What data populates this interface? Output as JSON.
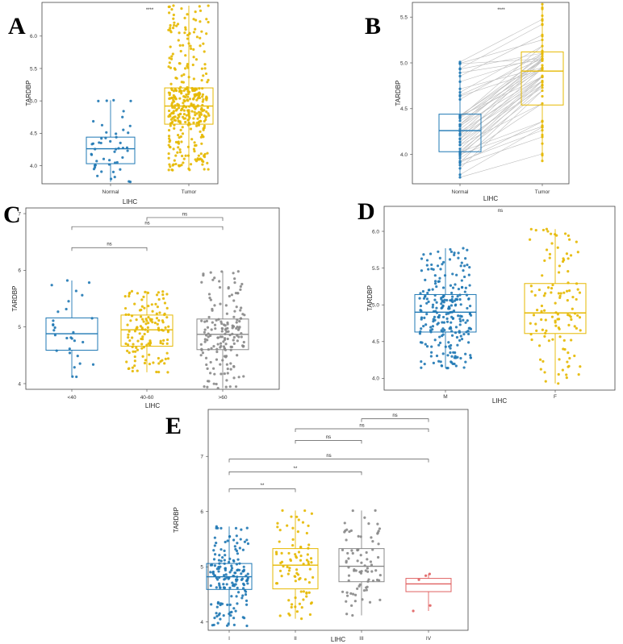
{
  "chart_data": [
    {
      "panel": "A",
      "type": "box",
      "title": "",
      "xlabel": "LIHC",
      "ylabel": "TARDBP",
      "ylim": [
        3.72,
        6.52
      ],
      "yticks": [
        4.0,
        4.5,
        5.0,
        5.5,
        6.0
      ],
      "ytick_labels": [
        "4.0",
        "4.5",
        "5.0",
        "5.5",
        "6.0"
      ],
      "categories": [
        "Normal",
        "Tumor"
      ],
      "colors": [
        "#1f78b4",
        "#e6b800"
      ],
      "n_points": [
        50,
        370
      ],
      "boxes": [
        {
          "min": 3.75,
          "q1": 4.03,
          "median": 4.26,
          "q3": 4.44,
          "max": 5.01
        },
        {
          "min": 3.93,
          "q1": 4.64,
          "median": 4.92,
          "q3": 5.2,
          "max": 6.47
        }
      ],
      "comparisons": [
        {
          "from": 0,
          "to": 1,
          "label": "****"
        }
      ]
    },
    {
      "panel": "B",
      "type": "box",
      "paired": true,
      "xlabel": "LIHC",
      "ylabel": "TARDBP",
      "ylim": [
        3.68,
        5.66
      ],
      "yticks": [
        4.0,
        4.5,
        5.0,
        5.5
      ],
      "ytick_labels": [
        "4.0",
        "4.5",
        "5.0",
        "5.5"
      ],
      "categories": [
        "Normal",
        "Tumor"
      ],
      "colors": [
        "#1f78b4",
        "#e6b800"
      ],
      "n_points": [
        50,
        50
      ],
      "boxes": [
        {
          "min": 3.75,
          "q1": 4.03,
          "median": 4.26,
          "q3": 4.44,
          "max": 5.01
        },
        {
          "min": 3.93,
          "q1": 4.54,
          "median": 4.91,
          "q3": 5.12,
          "max": 5.64
        }
      ],
      "comparisons": [
        {
          "from": 0,
          "to": 1,
          "label": "****"
        }
      ]
    },
    {
      "panel": "C",
      "type": "box",
      "xlabel": "LIHC",
      "ylabel": "TARDBP",
      "ylim": [
        3.9,
        7.1
      ],
      "yticks": [
        4,
        5,
        6,
        7
      ],
      "ytick_labels": [
        "4",
        "5",
        "6",
        "7"
      ],
      "categories": [
        "<40",
        "40-60",
        ">60"
      ],
      "colors": [
        "#1f78b4",
        "#e6b800",
        "#888888"
      ],
      "n_points": [
        30,
        140,
        170
      ],
      "boxes": [
        {
          "min": 4.12,
          "q1": 4.59,
          "median": 4.88,
          "q3": 5.16,
          "max": 5.82
        },
        {
          "min": 4.2,
          "q1": 4.66,
          "median": 4.95,
          "q3": 5.21,
          "max": 5.63
        },
        {
          "min": 3.92,
          "q1": 4.6,
          "median": 4.87,
          "q3": 5.14,
          "max": 5.98
        }
      ],
      "comparisons": [
        {
          "from": 1,
          "to": 2,
          "level": 6.93,
          "label": "ns"
        },
        {
          "from": 0,
          "to": 2,
          "level": 6.77,
          "label": "ns"
        },
        {
          "from": 0,
          "to": 1,
          "level": 6.4,
          "label": "ns"
        }
      ]
    },
    {
      "panel": "D",
      "type": "box",
      "xlabel": "LIHC",
      "ylabel": "TARDBP",
      "ylim": [
        3.84,
        6.34
      ],
      "yticks": [
        4.0,
        4.5,
        5.0,
        5.5,
        6.0
      ],
      "ytick_labels": [
        "4.0",
        "4.5",
        "5.0",
        "5.5",
        "6.0"
      ],
      "categories": [
        "M",
        "F"
      ],
      "colors": [
        "#1f78b4",
        "#e6b800"
      ],
      "n_points": [
        250,
        120
      ],
      "boxes": [
        {
          "min": 4.14,
          "q1": 4.63,
          "median": 4.9,
          "q3": 5.14,
          "max": 5.77
        },
        {
          "min": 3.93,
          "q1": 4.61,
          "median": 4.89,
          "q3": 5.29,
          "max": 6.03
        }
      ],
      "comparisons": [
        {
          "from": 0,
          "to": 1,
          "label": "ns"
        }
      ]
    },
    {
      "panel": "E",
      "type": "box",
      "xlabel": "LIHC",
      "ylabel": "TARDBP",
      "ylim": [
        3.85,
        7.85
      ],
      "yticks": [
        4,
        5,
        6,
        7
      ],
      "ytick_labels": [
        "4",
        "5",
        "6",
        "7"
      ],
      "categories": [
        "I",
        "II",
        "III",
        "IV"
      ],
      "colors": [
        "#1f78b4",
        "#e6b800",
        "#888888",
        "#e06060"
      ],
      "n_points": [
        170,
        86,
        82,
        5
      ],
      "boxes": [
        {
          "min": 3.93,
          "q1": 4.59,
          "median": 4.82,
          "q3": 5.06,
          "max": 5.73
        },
        {
          "min": 4.06,
          "q1": 4.6,
          "median": 5.03,
          "q3": 5.33,
          "max": 6.02
        },
        {
          "min": 4.12,
          "q1": 4.73,
          "median": 5.01,
          "q3": 5.33,
          "max": 6.02
        },
        {
          "min": 4.2,
          "q1": 4.55,
          "median": 4.69,
          "q3": 4.79,
          "max": 4.87
        }
      ],
      "comparisons": [
        {
          "from": 2,
          "to": 3,
          "level": 7.68,
          "label": "ns"
        },
        {
          "from": 1,
          "to": 3,
          "level": 7.5,
          "label": "ns"
        },
        {
          "from": 1,
          "to": 2,
          "level": 7.29,
          "label": "ns"
        },
        {
          "from": 0,
          "to": 3,
          "level": 6.95,
          "label": "ns"
        },
        {
          "from": 0,
          "to": 2,
          "level": 6.72,
          "label": "**"
        },
        {
          "from": 0,
          "to": 1,
          "level": 6.41,
          "label": "**"
        }
      ]
    }
  ]
}
